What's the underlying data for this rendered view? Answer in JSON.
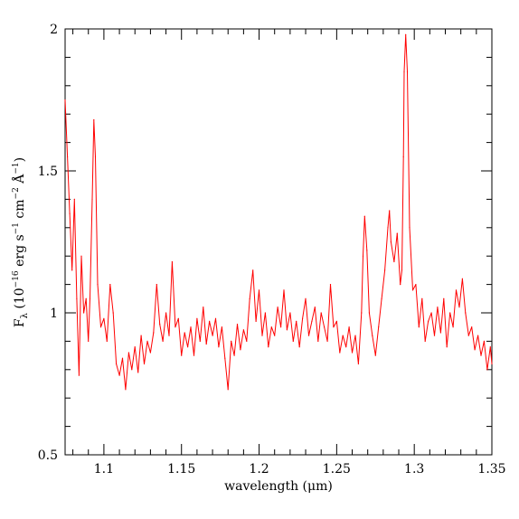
{
  "chart_data": {
    "type": "line",
    "title": "",
    "xlabel": "wavelength (μm)",
    "ylabel": "F_λ (10^-16 erg s^-1 cm^-2 Å^-1)",
    "ylabel_parts": {
      "f": "F",
      "lambda": "λ",
      "open": " (10",
      "exp1": "−16",
      "erg": " erg s",
      "exp2": "−1",
      "cm": " cm",
      "exp3": "−2",
      "ang": " Å",
      "exp4": "−1",
      "close": ")"
    },
    "xlim": [
      1.075,
      1.35
    ],
    "ylim": [
      0.5,
      2.0
    ],
    "grid": false,
    "line_color": "#ff0000",
    "x_ticks": [
      "1.1",
      "1.15",
      "1.2",
      "1.25",
      "1.3",
      "1.35"
    ],
    "y_ticks": [
      "0.5",
      "1",
      "1.5",
      "2"
    ],
    "series": [
      {
        "values": [
          [
            1.075,
            1.75
          ],
          [
            1.0765,
            1.55
          ],
          [
            1.078,
            1.35
          ],
          [
            1.0795,
            1.15
          ],
          [
            1.081,
            1.4
          ],
          [
            1.0825,
            1.05
          ],
          [
            1.084,
            0.78
          ],
          [
            1.0855,
            1.2
          ],
          [
            1.087,
            1.0
          ],
          [
            1.0885,
            1.05
          ],
          [
            1.09,
            0.9
          ],
          [
            1.091,
            1.05
          ],
          [
            1.0925,
            1.4
          ],
          [
            1.0935,
            1.68
          ],
          [
            1.0945,
            1.55
          ],
          [
            1.096,
            1.1
          ],
          [
            1.098,
            0.95
          ],
          [
            1.1,
            0.98
          ],
          [
            1.102,
            0.9
          ],
          [
            1.104,
            1.1
          ],
          [
            1.106,
            1.0
          ],
          [
            1.108,
            0.82
          ],
          [
            1.11,
            0.78
          ],
          [
            1.112,
            0.84
          ],
          [
            1.114,
            0.73
          ],
          [
            1.116,
            0.86
          ],
          [
            1.118,
            0.8
          ],
          [
            1.12,
            0.88
          ],
          [
            1.122,
            0.79
          ],
          [
            1.124,
            0.92
          ],
          [
            1.126,
            0.82
          ],
          [
            1.128,
            0.9
          ],
          [
            1.13,
            0.86
          ],
          [
            1.132,
            0.93
          ],
          [
            1.134,
            1.1
          ],
          [
            1.136,
            0.96
          ],
          [
            1.138,
            0.9
          ],
          [
            1.14,
            1.0
          ],
          [
            1.142,
            0.92
          ],
          [
            1.144,
            1.18
          ],
          [
            1.146,
            0.95
          ],
          [
            1.148,
            0.98
          ],
          [
            1.15,
            0.85
          ],
          [
            1.152,
            0.93
          ],
          [
            1.154,
            0.88
          ],
          [
            1.156,
            0.95
          ],
          [
            1.158,
            0.85
          ],
          [
            1.16,
            0.98
          ],
          [
            1.162,
            0.9
          ],
          [
            1.164,
            1.02
          ],
          [
            1.166,
            0.89
          ],
          [
            1.168,
            0.97
          ],
          [
            1.17,
            0.92
          ],
          [
            1.172,
            0.98
          ],
          [
            1.174,
            0.88
          ],
          [
            1.176,
            0.95
          ],
          [
            1.178,
            0.84
          ],
          [
            1.18,
            0.73
          ],
          [
            1.182,
            0.9
          ],
          [
            1.184,
            0.85
          ],
          [
            1.186,
            0.96
          ],
          [
            1.188,
            0.87
          ],
          [
            1.19,
            0.94
          ],
          [
            1.192,
            0.9
          ],
          [
            1.194,
            1.05
          ],
          [
            1.196,
            1.15
          ],
          [
            1.198,
            0.97
          ],
          [
            1.2,
            1.08
          ],
          [
            1.202,
            0.92
          ],
          [
            1.204,
            1.0
          ],
          [
            1.206,
            0.88
          ],
          [
            1.208,
            0.95
          ],
          [
            1.21,
            0.92
          ],
          [
            1.212,
            1.02
          ],
          [
            1.214,
            0.95
          ],
          [
            1.216,
            1.08
          ],
          [
            1.218,
            0.94
          ],
          [
            1.22,
            1.0
          ],
          [
            1.222,
            0.9
          ],
          [
            1.224,
            0.97
          ],
          [
            1.226,
            0.88
          ],
          [
            1.228,
            0.98
          ],
          [
            1.23,
            1.05
          ],
          [
            1.232,
            0.92
          ],
          [
            1.234,
            0.97
          ],
          [
            1.236,
            1.02
          ],
          [
            1.238,
            0.9
          ],
          [
            1.24,
            1.0
          ],
          [
            1.242,
            0.95
          ],
          [
            1.244,
            0.9
          ],
          [
            1.246,
            1.1
          ],
          [
            1.248,
            0.95
          ],
          [
            1.25,
            0.97
          ],
          [
            1.252,
            0.86
          ],
          [
            1.254,
            0.92
          ],
          [
            1.256,
            0.88
          ],
          [
            1.258,
            0.95
          ],
          [
            1.26,
            0.86
          ],
          [
            1.262,
            0.92
          ],
          [
            1.264,
            0.82
          ],
          [
            1.266,
            1.0
          ],
          [
            1.267,
            1.2
          ],
          [
            1.268,
            1.34
          ],
          [
            1.2695,
            1.22
          ],
          [
            1.271,
            1.0
          ],
          [
            1.273,
            0.92
          ],
          [
            1.275,
            0.85
          ],
          [
            1.277,
            0.95
          ],
          [
            1.279,
            1.05
          ],
          [
            1.281,
            1.15
          ],
          [
            1.283,
            1.3
          ],
          [
            1.284,
            1.36
          ],
          [
            1.285,
            1.25
          ],
          [
            1.287,
            1.18
          ],
          [
            1.289,
            1.28
          ],
          [
            1.291,
            1.1
          ],
          [
            1.292,
            1.15
          ],
          [
            1.293,
            1.55
          ],
          [
            1.2935,
            1.85
          ],
          [
            1.2945,
            1.98
          ],
          [
            1.2955,
            1.85
          ],
          [
            1.297,
            1.3
          ],
          [
            1.299,
            1.08
          ],
          [
            1.301,
            1.1
          ],
          [
            1.303,
            0.95
          ],
          [
            1.305,
            1.05
          ],
          [
            1.307,
            0.9
          ],
          [
            1.309,
            0.97
          ],
          [
            1.311,
            1.0
          ],
          [
            1.313,
            0.92
          ],
          [
            1.315,
            1.02
          ],
          [
            1.317,
            0.93
          ],
          [
            1.319,
            1.05
          ],
          [
            1.321,
            0.88
          ],
          [
            1.323,
            1.0
          ],
          [
            1.325,
            0.95
          ],
          [
            1.327,
            1.08
          ],
          [
            1.329,
            1.02
          ],
          [
            1.331,
            1.12
          ],
          [
            1.333,
            1.0
          ],
          [
            1.335,
            0.92
          ],
          [
            1.337,
            0.95
          ],
          [
            1.339,
            0.87
          ],
          [
            1.341,
            0.92
          ],
          [
            1.343,
            0.85
          ],
          [
            1.345,
            0.9
          ],
          [
            1.347,
            0.8
          ],
          [
            1.349,
            0.88
          ],
          [
            1.35,
            0.82
          ]
        ]
      }
    ]
  }
}
